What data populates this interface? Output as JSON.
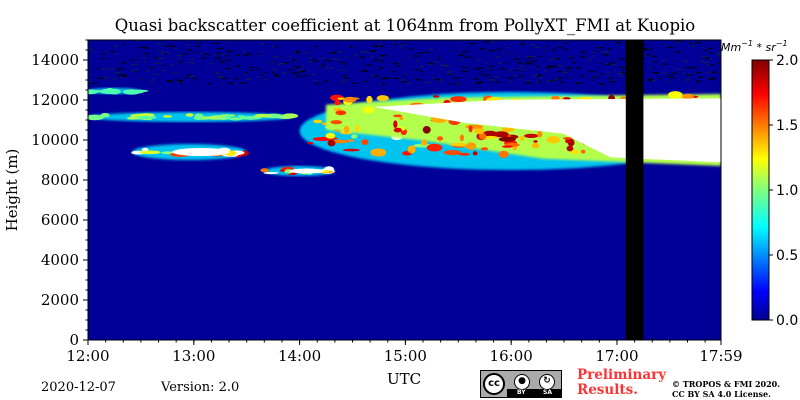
{
  "chart_data": {
    "type": "heatmap",
    "title": "Quasi backscatter coefficient at 1064nm from PollyXT_FMI at Kuopio",
    "xlabel": "UTC",
    "ylabel": "Height (m)",
    "x_ticks": [
      "12:00",
      "13:00",
      "14:00",
      "15:00",
      "16:00",
      "17:00",
      "17:59"
    ],
    "x_range": [
      "12:00",
      "17:59"
    ],
    "y_ticks": [
      0,
      2000,
      4000,
      6000,
      8000,
      10000,
      12000,
      14000
    ],
    "ylim": [
      0,
      15000
    ],
    "colorbar": {
      "label_base": "Mm",
      "label_sup1": "−1",
      "label_mid": " * sr",
      "label_sup2": "−1",
      "ticks": [
        "0.0",
        "0.5",
        "1.0",
        "1.5",
        "2.0"
      ],
      "range": [
        0,
        2.0
      ],
      "colormap": "jet",
      "over_color": "#ffffff"
    },
    "background_value": 0.05,
    "no_data_periods": [
      {
        "start": "17:05",
        "end": "17:15",
        "color": "#000000"
      }
    ],
    "features": [
      {
        "kind": "noise-speckle",
        "time_start": "12:00",
        "time_end": "17:59",
        "height_min": 12800,
        "height_max": 15000
      },
      {
        "kind": "cirrus",
        "time_start": "12:00",
        "time_end": "12:30",
        "height_min": 12300,
        "height_max": 12600,
        "peak_value": 0.6
      },
      {
        "kind": "cirrus",
        "time_start": "12:00",
        "time_end": "13:55",
        "height_min": 10900,
        "height_max": 11400,
        "peak_value": 0.9
      },
      {
        "kind": "cirrus",
        "time_start": "12:25",
        "time_end": "13:30",
        "height_min": 9000,
        "height_max": 9800,
        "peak_value": 2.0
      },
      {
        "kind": "cirrus",
        "time_start": "13:40",
        "time_end": "14:20",
        "height_min": 8200,
        "height_max": 8700,
        "peak_value": 2.0
      },
      {
        "kind": "cirrus",
        "time_start": "14:00",
        "time_end": "17:59",
        "height_min": 8500,
        "height_max": 12400,
        "peak_value": 2.0
      },
      {
        "kind": "dense-cloud",
        "time_start": "14:15",
        "time_end": "17:59",
        "height_min": 8700,
        "height_max": 12300,
        "peak_value": 2.0
      }
    ]
  },
  "footer": {
    "date": "2020-12-07",
    "version": "Version: 2.0",
    "preliminary": [
      "Preliminary",
      "Results."
    ],
    "copyright": [
      "© TROPOS & FMI 2020.",
      "CC BY SA 4.0 License."
    ],
    "license_badge": {
      "by": "BY",
      "sa": "SA",
      "cc": "cc"
    }
  }
}
